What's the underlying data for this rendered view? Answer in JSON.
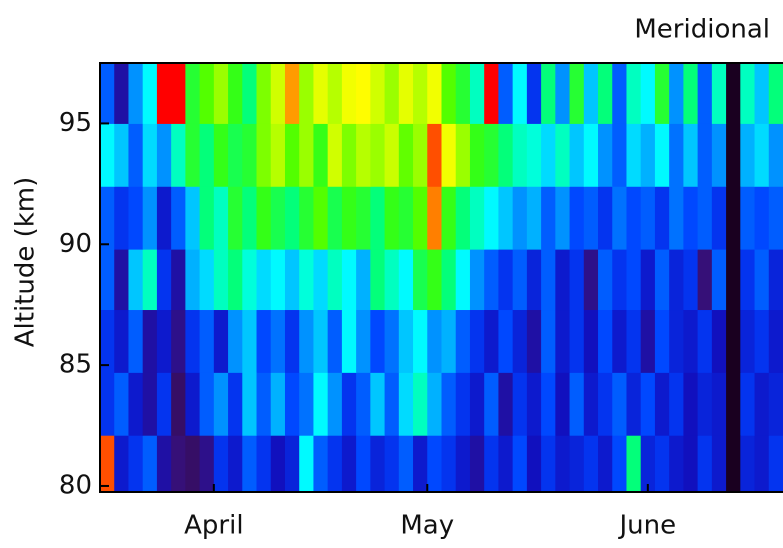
{
  "chart_data": {
    "type": "heatmap",
    "title": "Meridional",
    "ylabel": "Altitude (km)",
    "x_edges": [
      89,
      91,
      93,
      95,
      97,
      99,
      101,
      103,
      105,
      107,
      109,
      111,
      113,
      115,
      117,
      119,
      121,
      123,
      125,
      127,
      129,
      131,
      133,
      135,
      137,
      139,
      141,
      143,
      145,
      147,
      149,
      151,
      153,
      155,
      157,
      159,
      161,
      163,
      165,
      167,
      169,
      171,
      173,
      175,
      177,
      179,
      181,
      183,
      185
    ],
    "y_edges": [
      79.75,
      82.1,
      84.7,
      87.3,
      89.8,
      92.4,
      95,
      97.5
    ],
    "xlim": [
      89,
      185
    ],
    "ylim": [
      79.75,
      97.5
    ],
    "xticks": [
      {
        "value": 105,
        "label": "April"
      },
      {
        "value": 135,
        "label": "May"
      },
      {
        "value": 166,
        "label": "June"
      }
    ],
    "yticks": [
      80,
      85,
      90,
      95
    ],
    "colormap": [
      "#1a0020",
      "#3a1070",
      "#1010c0",
      "#0040ff",
      "#00a0ff",
      "#00ffff",
      "#00ff80",
      "#40ff00",
      "#c0ff00",
      "#ffff00",
      "#ff9000",
      "#ff0000"
    ],
    "z": [
      [
        0.95,
        0.2,
        0.25,
        0.3,
        0.15,
        0.1,
        0.08,
        0.12,
        0.25,
        0.2,
        0.3,
        0.25,
        0.18,
        0.22,
        0.45,
        0.3,
        0.25,
        0.2,
        0.28,
        0.22,
        0.25,
        0.3,
        0.2,
        0.28,
        0.25,
        0.2,
        0.15,
        0.25,
        0.2,
        0.28,
        0.18,
        0.25,
        0.2,
        0.22,
        0.25,
        0.2,
        0.28,
        0.55,
        0.22,
        0.25,
        0.2,
        0.18,
        0.25,
        0.2,
        0.0,
        0.22,
        0.2,
        0.25
      ],
      [
        0.25,
        0.3,
        0.2,
        0.15,
        0.25,
        0.08,
        0.2,
        0.3,
        0.35,
        0.25,
        0.4,
        0.3,
        0.38,
        0.28,
        0.32,
        0.45,
        0.35,
        0.25,
        0.3,
        0.4,
        0.3,
        0.42,
        0.5,
        0.38,
        0.3,
        0.25,
        0.2,
        0.3,
        0.15,
        0.25,
        0.2,
        0.28,
        0.18,
        0.3,
        0.2,
        0.25,
        0.3,
        0.22,
        0.28,
        0.2,
        0.25,
        0.18,
        0.22,
        0.2,
        0.0,
        0.25,
        0.2,
        0.22
      ],
      [
        0.25,
        0.2,
        0.3,
        0.15,
        0.2,
        0.12,
        0.25,
        0.3,
        0.2,
        0.35,
        0.4,
        0.28,
        0.32,
        0.25,
        0.35,
        0.4,
        0.3,
        0.45,
        0.35,
        0.28,
        0.32,
        0.4,
        0.45,
        0.35,
        0.38,
        0.3,
        0.25,
        0.2,
        0.28,
        0.22,
        0.15,
        0.3,
        0.2,
        0.25,
        0.18,
        0.28,
        0.2,
        0.25,
        0.15,
        0.28,
        0.22,
        0.2,
        0.25,
        0.18,
        0.0,
        0.22,
        0.25,
        0.2
      ],
      [
        0.3,
        0.15,
        0.4,
        0.5,
        0.25,
        0.15,
        0.38,
        0.42,
        0.5,
        0.55,
        0.48,
        0.42,
        0.45,
        0.4,
        0.48,
        0.42,
        0.5,
        0.45,
        0.38,
        0.55,
        0.5,
        0.45,
        0.58,
        0.62,
        0.55,
        0.45,
        0.35,
        0.3,
        0.25,
        0.3,
        0.22,
        0.3,
        0.2,
        0.25,
        0.12,
        0.3,
        0.25,
        0.28,
        0.2,
        0.3,
        0.22,
        0.25,
        0.1,
        0.3,
        0.0,
        0.25,
        0.3,
        0.22
      ],
      [
        0.3,
        0.25,
        0.28,
        0.35,
        0.2,
        0.3,
        0.4,
        0.55,
        0.5,
        0.6,
        0.55,
        0.62,
        0.58,
        0.55,
        0.6,
        0.65,
        0.58,
        0.62,
        0.6,
        0.55,
        0.62,
        0.6,
        0.65,
        0.92,
        0.62,
        0.55,
        0.5,
        0.45,
        0.4,
        0.35,
        0.38,
        0.3,
        0.35,
        0.28,
        0.3,
        0.25,
        0.32,
        0.28,
        0.3,
        0.25,
        0.32,
        0.28,
        0.3,
        0.25,
        0.0,
        0.3,
        0.28,
        0.3
      ],
      [
        0.45,
        0.4,
        0.3,
        0.42,
        0.35,
        0.5,
        0.6,
        0.55,
        0.62,
        0.58,
        0.6,
        0.68,
        0.72,
        0.65,
        0.7,
        0.62,
        0.75,
        0.68,
        0.72,
        0.7,
        0.74,
        0.66,
        0.7,
        0.95,
        0.8,
        0.7,
        0.62,
        0.6,
        0.55,
        0.5,
        0.48,
        0.42,
        0.5,
        0.4,
        0.45,
        0.35,
        0.3,
        0.42,
        0.38,
        0.45,
        0.32,
        0.4,
        0.3,
        0.35,
        0.0,
        0.38,
        0.42,
        0.35
      ],
      [
        0.3,
        0.15,
        0.35,
        0.45,
        1.0,
        1.0,
        0.6,
        0.65,
        0.7,
        0.62,
        0.55,
        0.68,
        0.75,
        0.9,
        0.7,
        0.78,
        0.72,
        0.8,
        0.82,
        0.75,
        0.7,
        0.78,
        0.72,
        0.8,
        0.65,
        0.6,
        0.5,
        1.0,
        0.3,
        0.45,
        0.25,
        0.55,
        0.35,
        0.6,
        0.4,
        0.55,
        0.3,
        0.5,
        0.45,
        0.6,
        0.35,
        0.55,
        0.3,
        0.5,
        0.0,
        0.5,
        0.4,
        0.55
      ]
    ]
  }
}
